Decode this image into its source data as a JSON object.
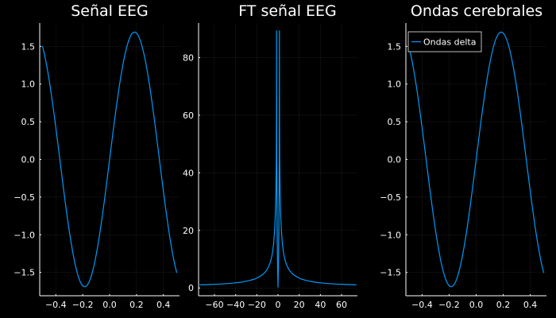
{
  "chart_data": [
    {
      "type": "line",
      "title": "Señal EEG",
      "xlabel": "",
      "ylabel": "",
      "xlim": [
        -0.52,
        0.52
      ],
      "ylim": [
        -1.81,
        1.81
      ],
      "xticks": [
        -0.4,
        -0.2,
        0.0,
        0.2,
        0.4
      ],
      "xtick_labels": [
        "−0.4",
        "−0.2",
        "0.0",
        "0.2",
        "0.4"
      ],
      "yticks": [
        -1.5,
        -1.0,
        -0.5,
        0.0,
        0.5,
        1.0,
        1.5
      ],
      "ytick_labels": [
        "−1.5",
        "−1.0",
        "−0.5",
        "0.0",
        "0.5",
        "1.0",
        "1.5"
      ],
      "grid": true,
      "series": [
        {
          "function": "A*sin(2*pi*f*x)",
          "amplitude": 1.69,
          "frequency": 1.35,
          "x_range": [
            -0.5,
            0.5
          ],
          "color": "#009af9"
        }
      ]
    },
    {
      "type": "line",
      "title": "FT señal EEG",
      "xlabel": "",
      "ylabel": "",
      "xlim": [
        -75,
        75
      ],
      "ylim": [
        -2.7,
        92
      ],
      "xticks": [
        -60,
        -40,
        -20,
        0,
        20,
        40,
        60
      ],
      "xtick_labels": [
        "−60",
        "−40",
        "−20",
        "0",
        "20",
        "40",
        "60"
      ],
      "yticks": [
        0,
        20,
        40,
        60,
        80
      ],
      "ytick_labels": [
        "0",
        "20",
        "40",
        "60",
        "80"
      ],
      "grid": true,
      "series": [
        {
          "x": [
            -74,
            -65,
            -55,
            -45,
            -35,
            -28,
            -22,
            -18,
            -14,
            -11,
            -9,
            -7,
            -5.5,
            -4.2,
            -3.3,
            -2.6,
            -2.0,
            -1.6,
            -1.45,
            -1.35,
            -1.2,
            -0.9,
            -0.5,
            -0.2,
            0,
            0.2,
            0.5,
            0.9,
            1.2,
            1.35,
            1.45,
            1.6,
            2.0,
            2.6,
            3.3,
            4.2,
            5.5,
            7,
            9,
            11,
            14,
            18,
            22,
            28,
            35,
            45,
            55,
            65,
            74
          ],
          "y": [
            1.1,
            1.2,
            1.35,
            1.6,
            2.0,
            2.5,
            3.1,
            3.8,
            4.8,
            6.0,
            7.3,
            9.2,
            11.6,
            15.0,
            19.5,
            25.0,
            33.0,
            45.0,
            60.0,
            89.3,
            45.0,
            22.0,
            10.0,
            4.0,
            0.3,
            4.0,
            10.0,
            22.0,
            45.0,
            89.3,
            60.0,
            45.0,
            33.0,
            25.0,
            19.5,
            15.0,
            11.6,
            9.2,
            7.3,
            6.0,
            4.8,
            3.8,
            3.1,
            2.5,
            2.0,
            1.6,
            1.35,
            1.2,
            1.1
          ],
          "color": "#009af9"
        }
      ]
    },
    {
      "type": "line",
      "title": "Ondas cerebrales",
      "xlabel": "",
      "ylabel": "",
      "xlim": [
        -0.52,
        0.52
      ],
      "ylim": [
        -1.81,
        1.81
      ],
      "xticks": [
        -0.4,
        -0.2,
        0.0,
        0.2,
        0.4
      ],
      "xtick_labels": [
        "−0.4",
        "−0.2",
        "0.0",
        "0.2",
        "0.4"
      ],
      "yticks": [
        -1.5,
        -1.0,
        -0.5,
        0.0,
        0.5,
        1.0,
        1.5
      ],
      "ytick_labels": [
        "−1.5",
        "−1.0",
        "−0.5",
        "0.0",
        "0.5",
        "1.0",
        "1.5"
      ],
      "grid": true,
      "legend": {
        "position": "top-left",
        "entries": [
          "Ondas delta"
        ]
      },
      "series": [
        {
          "name": "Ondas delta",
          "function": "A*sin(2*pi*f*x)",
          "amplitude": 1.69,
          "frequency": 1.35,
          "x_range": [
            -0.5,
            0.5
          ],
          "color": "#009af9"
        }
      ]
    }
  ]
}
